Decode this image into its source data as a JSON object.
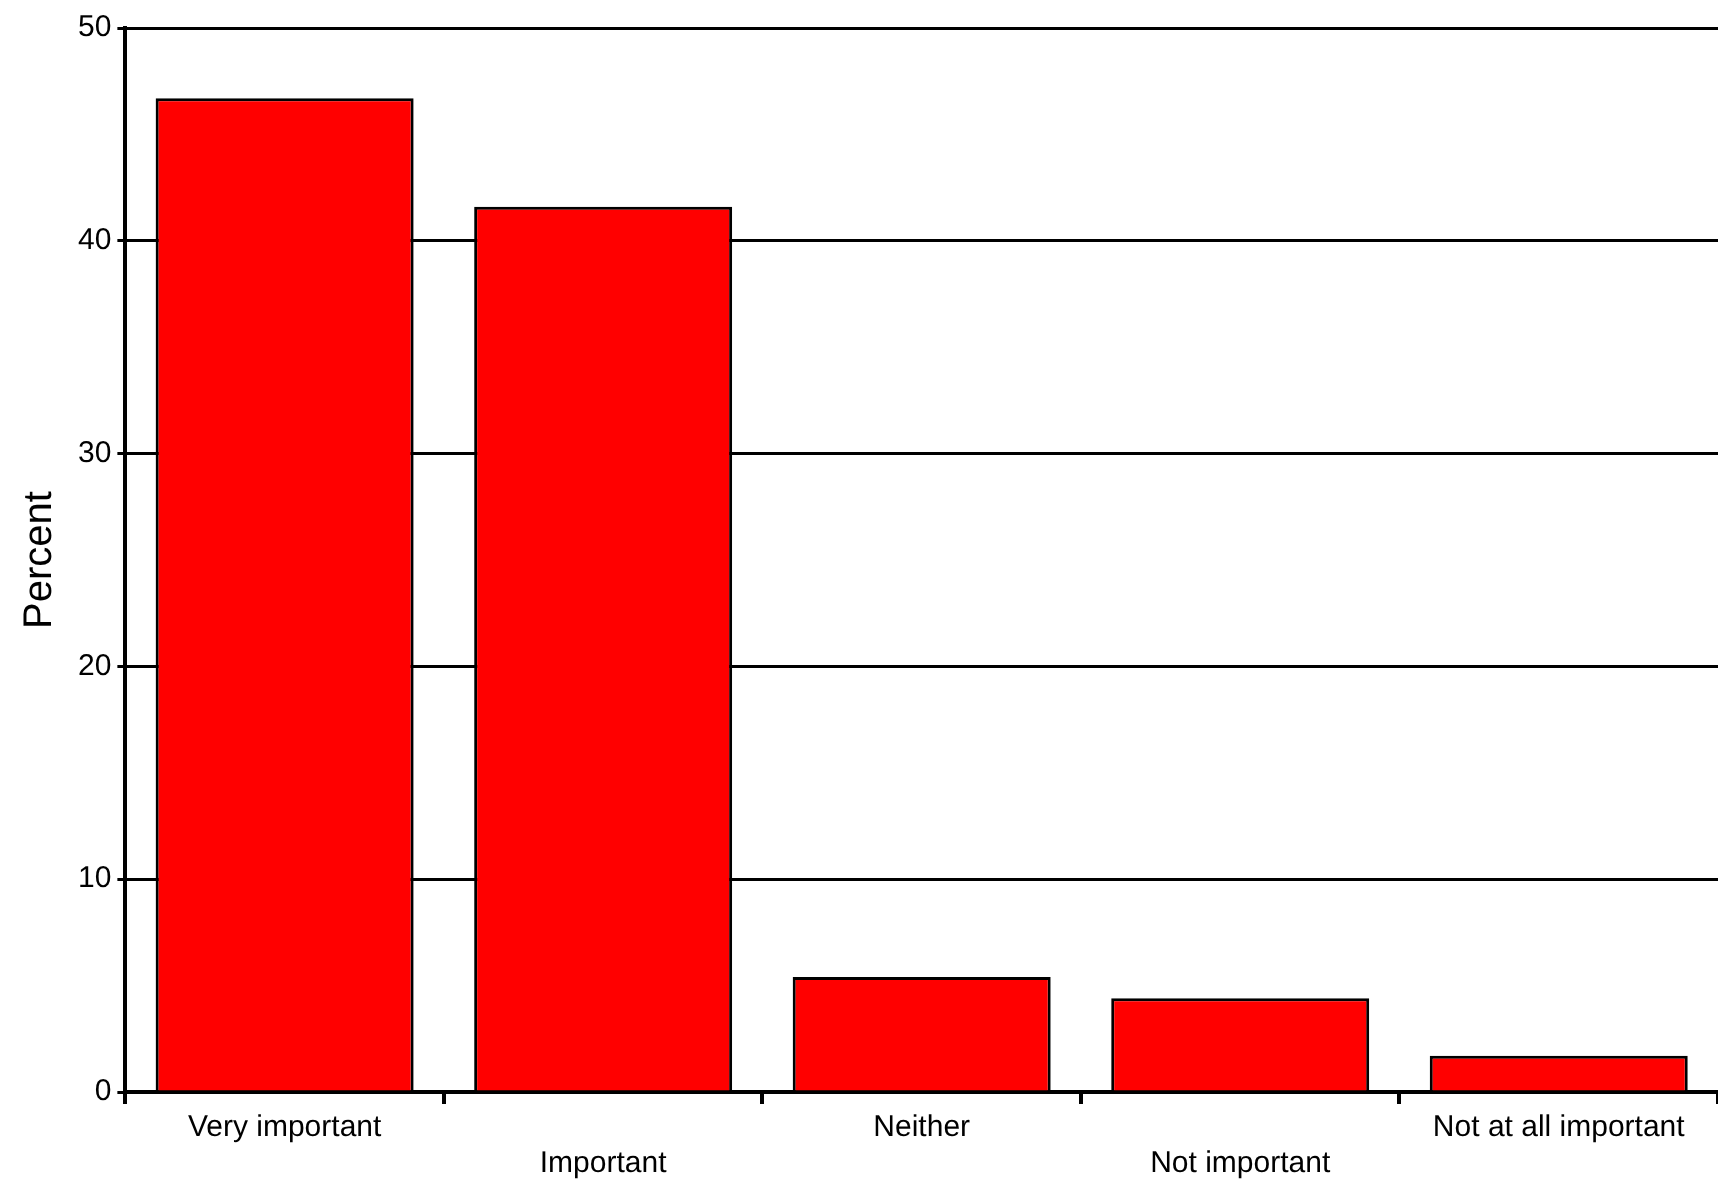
{
  "chart_data": {
    "type": "bar",
    "ylabel": "Percent",
    "categories": [
      "Very important",
      "Important",
      "Neither",
      "Not important",
      "Not at all important"
    ],
    "values": [
      46.7,
      41.6,
      5.4,
      4.4,
      1.7
    ],
    "color": "#ff0000",
    "ylim": [
      0,
      50
    ],
    "yticks": [
      0,
      10,
      20,
      30,
      40,
      50
    ],
    "grid": "y",
    "legend": false
  }
}
